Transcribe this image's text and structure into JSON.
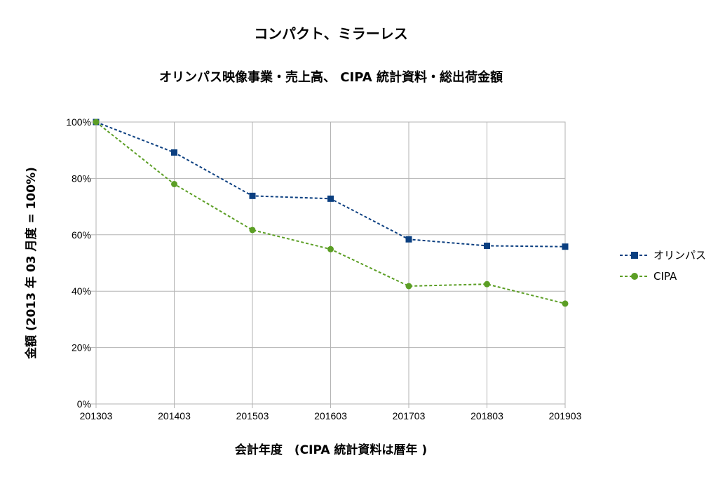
{
  "chart_data": {
    "type": "line",
    "title": "コンパクト、ミラーレス",
    "subtitle": "オリンパス映像事業・売上高、 CIPA 統計資料・総出荷金額",
    "xlabel": "会計年度　(CIPA 統計資料は暦年 )",
    "ylabel": "金額 (2013 年 03 月度 = 100%)",
    "categories": [
      "201303",
      "201403",
      "201503",
      "201603",
      "201703",
      "201803",
      "201903"
    ],
    "ylim": [
      0,
      100
    ],
    "yticks": [
      0,
      20,
      40,
      60,
      80,
      100
    ],
    "ytick_labels": [
      "0%",
      "20%",
      "40%",
      "60%",
      "80%",
      "100%"
    ],
    "grid": true,
    "legend_position": "right",
    "series": [
      {
        "name": "オリンパス",
        "values": [
          100,
          89.2,
          73.8,
          72.8,
          58.4,
          56.1,
          55.8
        ],
        "color": "#0b3f80",
        "marker": "square",
        "line_style": "dashed"
      },
      {
        "name": "CIPA",
        "values": [
          100,
          78.0,
          61.7,
          54.9,
          41.8,
          42.5,
          35.6
        ],
        "color": "#5b9e24",
        "marker": "circle",
        "line_style": "dashed"
      }
    ]
  }
}
